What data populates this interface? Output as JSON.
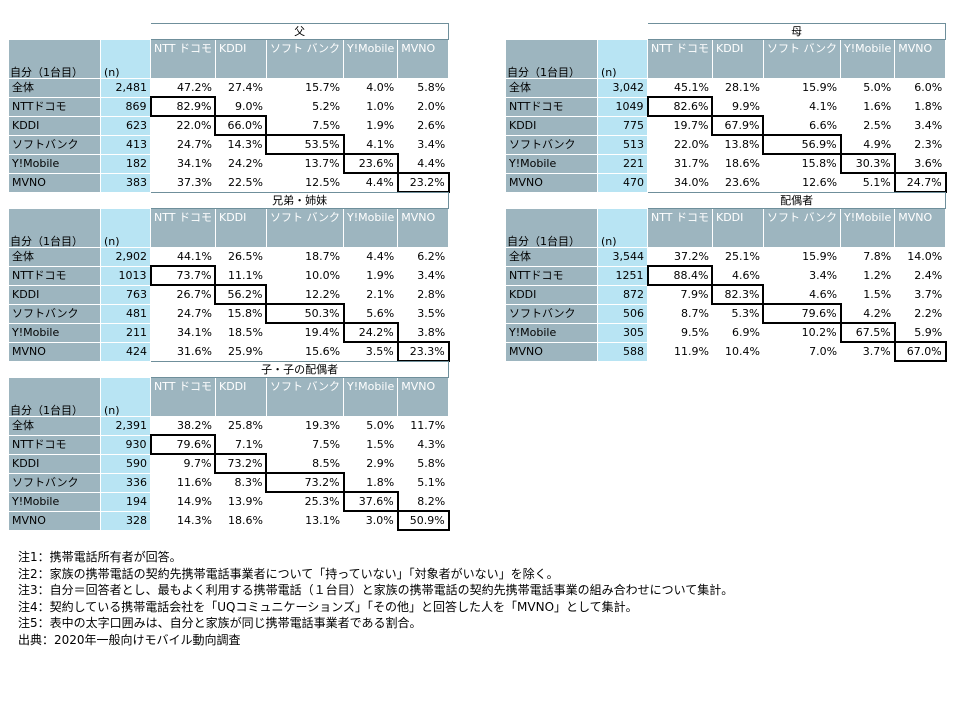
{
  "row_header_label": "自分（1台目）",
  "n_label": "(n)",
  "column_headers": [
    "NTT\nドコモ",
    "KDDI",
    "ソフト\nバンク",
    "Y!Mobile",
    "MVNO"
  ],
  "tables": [
    {
      "title": "父",
      "rows": [
        {
          "label": "全体",
          "n": "2,481",
          "values": [
            "47.2%",
            "27.4%",
            "15.7%",
            "4.0%",
            "5.8%"
          ],
          "highlight": -1
        },
        {
          "label": "NTTドコモ",
          "n": "869",
          "values": [
            "82.9%",
            "9.0%",
            "5.2%",
            "1.0%",
            "2.0%"
          ],
          "highlight": 0
        },
        {
          "label": "KDDI",
          "n": "623",
          "values": [
            "22.0%",
            "66.0%",
            "7.5%",
            "1.9%",
            "2.6%"
          ],
          "highlight": 1
        },
        {
          "label": "ソフトバンク",
          "n": "413",
          "values": [
            "24.7%",
            "14.3%",
            "53.5%",
            "4.1%",
            "3.4%"
          ],
          "highlight": 2
        },
        {
          "label": "Y!Mobile",
          "n": "182",
          "values": [
            "34.1%",
            "24.2%",
            "13.7%",
            "23.6%",
            "4.4%"
          ],
          "highlight": 3
        },
        {
          "label": "MVNO",
          "n": "383",
          "values": [
            "37.3%",
            "22.5%",
            "12.5%",
            "4.4%",
            "23.2%"
          ],
          "highlight": 4
        }
      ]
    },
    {
      "title": "母",
      "rows": [
        {
          "label": "全体",
          "n": "3,042",
          "values": [
            "45.1%",
            "28.1%",
            "15.9%",
            "5.0%",
            "6.0%"
          ],
          "highlight": -1
        },
        {
          "label": "NTTドコモ",
          "n": "1049",
          "values": [
            "82.6%",
            "9.9%",
            "4.1%",
            "1.6%",
            "1.8%"
          ],
          "highlight": 0
        },
        {
          "label": "KDDI",
          "n": "775",
          "values": [
            "19.7%",
            "67.9%",
            "6.6%",
            "2.5%",
            "3.4%"
          ],
          "highlight": 1
        },
        {
          "label": "ソフトバンク",
          "n": "513",
          "values": [
            "22.0%",
            "13.8%",
            "56.9%",
            "4.9%",
            "2.3%"
          ],
          "highlight": 2
        },
        {
          "label": "Y!Mobile",
          "n": "221",
          "values": [
            "31.7%",
            "18.6%",
            "15.8%",
            "30.3%",
            "3.6%"
          ],
          "highlight": 3
        },
        {
          "label": "MVNO",
          "n": "470",
          "values": [
            "34.0%",
            "23.6%",
            "12.6%",
            "5.1%",
            "24.7%"
          ],
          "highlight": 4
        }
      ]
    },
    {
      "title": "兄弟・姉妹",
      "rows": [
        {
          "label": "全体",
          "n": "2,902",
          "values": [
            "44.1%",
            "26.5%",
            "18.7%",
            "4.4%",
            "6.2%"
          ],
          "highlight": -1
        },
        {
          "label": "NTTドコモ",
          "n": "1013",
          "values": [
            "73.7%",
            "11.1%",
            "10.0%",
            "1.9%",
            "3.4%"
          ],
          "highlight": 0
        },
        {
          "label": "KDDI",
          "n": "763",
          "values": [
            "26.7%",
            "56.2%",
            "12.2%",
            "2.1%",
            "2.8%"
          ],
          "highlight": 1
        },
        {
          "label": "ソフトバンク",
          "n": "481",
          "values": [
            "24.7%",
            "15.8%",
            "50.3%",
            "5.6%",
            "3.5%"
          ],
          "highlight": 2
        },
        {
          "label": "Y!Mobile",
          "n": "211",
          "values": [
            "34.1%",
            "18.5%",
            "19.4%",
            "24.2%",
            "3.8%"
          ],
          "highlight": 3
        },
        {
          "label": "MVNO",
          "n": "424",
          "values": [
            "31.6%",
            "25.9%",
            "15.6%",
            "3.5%",
            "23.3%"
          ],
          "highlight": 4
        }
      ]
    },
    {
      "title": "配偶者",
      "rows": [
        {
          "label": "全体",
          "n": "3,544",
          "values": [
            "37.2%",
            "25.1%",
            "15.9%",
            "7.8%",
            "14.0%"
          ],
          "highlight": -1
        },
        {
          "label": "NTTドコモ",
          "n": "1251",
          "values": [
            "88.4%",
            "4.6%",
            "3.4%",
            "1.2%",
            "2.4%"
          ],
          "highlight": 0
        },
        {
          "label": "KDDI",
          "n": "872",
          "values": [
            "7.9%",
            "82.3%",
            "4.6%",
            "1.5%",
            "3.7%"
          ],
          "highlight": 1
        },
        {
          "label": "ソフトバンク",
          "n": "506",
          "values": [
            "8.7%",
            "5.3%",
            "79.6%",
            "4.2%",
            "2.2%"
          ],
          "highlight": 2
        },
        {
          "label": "Y!Mobile",
          "n": "305",
          "values": [
            "9.5%",
            "6.9%",
            "10.2%",
            "67.5%",
            "5.9%"
          ],
          "highlight": 3
        },
        {
          "label": "MVNO",
          "n": "588",
          "values": [
            "11.9%",
            "10.4%",
            "7.0%",
            "3.7%",
            "67.0%"
          ],
          "highlight": 4
        }
      ]
    },
    {
      "title": "子・子の配偶者",
      "rows": [
        {
          "label": "全体",
          "n": "2,391",
          "values": [
            "38.2%",
            "25.8%",
            "19.3%",
            "5.0%",
            "11.7%"
          ],
          "highlight": -1
        },
        {
          "label": "NTTドコモ",
          "n": "930",
          "values": [
            "79.6%",
            "7.1%",
            "7.5%",
            "1.5%",
            "4.3%"
          ],
          "highlight": 0
        },
        {
          "label": "KDDI",
          "n": "590",
          "values": [
            "9.7%",
            "73.2%",
            "8.5%",
            "2.9%",
            "5.8%"
          ],
          "highlight": 1
        },
        {
          "label": "ソフトバンク",
          "n": "336",
          "values": [
            "11.6%",
            "8.3%",
            "73.2%",
            "1.8%",
            "5.1%"
          ],
          "highlight": 2
        },
        {
          "label": "Y!Mobile",
          "n": "194",
          "values": [
            "14.9%",
            "13.9%",
            "25.3%",
            "37.6%",
            "8.2%"
          ],
          "highlight": 3
        },
        {
          "label": "MVNO",
          "n": "328",
          "values": [
            "14.3%",
            "18.6%",
            "13.1%",
            "3.0%",
            "50.9%"
          ],
          "highlight": 4
        }
      ]
    }
  ],
  "notes": [
    "注1：携帯電話所有者が回答。",
    "注2：家族の携帯電話の契約先携帯電話事業者について「持っていない」「対象者がいない」を除く。",
    "注3：自分＝回答者とし、最もよく利用する携帯電話（１台目）と家族の携帯電話の契約先携帯電話事業の組み合わせについて集計。",
    "注4：契約している携帯電話会社を「UQコミュニケーションズ」「その他」と回答した人を「MVNO」として集計。",
    "注5：表中の太字口囲みは、自分と家族が同じ携帯電話事業者である割合。",
    "出典：2020年一般向けモバイル動向調査"
  ],
  "colors": {
    "label_bg": "#9db5bf",
    "n_bg": "#b8e4f3",
    "highlight_border": "#000000"
  }
}
